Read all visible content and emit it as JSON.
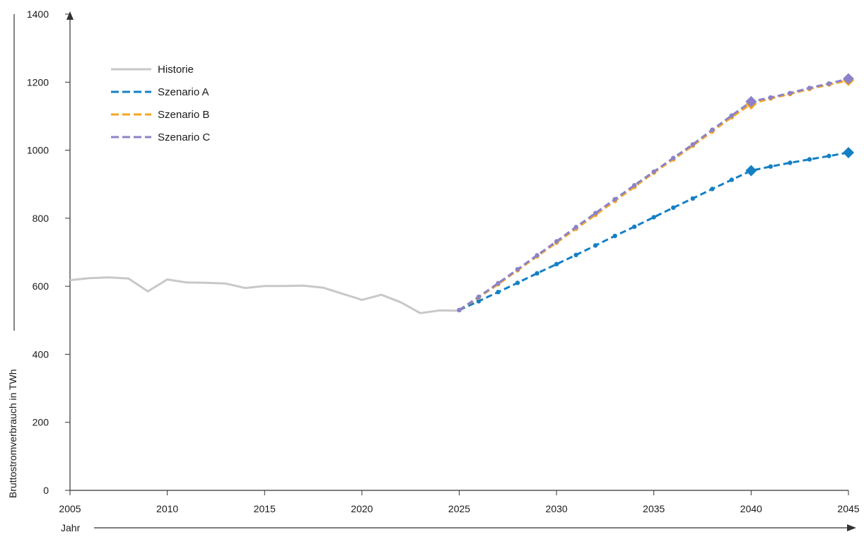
{
  "chart_data": {
    "type": "line",
    "xlabel": "Jahr",
    "ylabel": "Bruttostromverbrauch in TWh",
    "xlim": [
      2005,
      2045
    ],
    "ylim": [
      0,
      1400
    ],
    "x_ticks": [
      2005,
      2010,
      2015,
      2020,
      2025,
      2030,
      2035,
      2040,
      2045
    ],
    "y_ticks": [
      0,
      200,
      400,
      600,
      800,
      1000,
      1200,
      1400
    ],
    "grid": false,
    "legend": "top-left",
    "series": [
      {
        "name": "Historie",
        "color": "#c8c8c8",
        "style": "solid",
        "points": [
          [
            2005,
            618
          ],
          [
            2006,
            624
          ],
          [
            2007,
            626
          ],
          [
            2008,
            623
          ],
          [
            2009,
            585
          ],
          [
            2010,
            620
          ],
          [
            2011,
            611
          ],
          [
            2012,
            610
          ],
          [
            2013,
            608
          ],
          [
            2014,
            595
          ],
          [
            2015,
            601
          ],
          [
            2016,
            601
          ],
          [
            2017,
            602
          ],
          [
            2018,
            596
          ],
          [
            2019,
            578
          ],
          [
            2020,
            560
          ],
          [
            2021,
            575
          ],
          [
            2022,
            553
          ],
          [
            2023,
            521
          ],
          [
            2024,
            529
          ],
          [
            2025,
            528
          ]
        ]
      },
      {
        "name": "Szenario A",
        "color": "#1480c4",
        "style": "dashed",
        "points": [
          [
            2025,
            530
          ],
          [
            2026,
            556
          ],
          [
            2027,
            583
          ],
          [
            2028,
            610
          ],
          [
            2029,
            638
          ],
          [
            2030,
            665
          ],
          [
            2031,
            692
          ],
          [
            2032,
            720
          ],
          [
            2033,
            748
          ],
          [
            2034,
            775
          ],
          [
            2035,
            803
          ],
          [
            2036,
            831
          ],
          [
            2037,
            858
          ],
          [
            2038,
            886
          ],
          [
            2039,
            913
          ],
          [
            2040,
            940
          ],
          [
            2041,
            952
          ],
          [
            2042,
            963
          ],
          [
            2043,
            973
          ],
          [
            2044,
            983
          ],
          [
            2045,
            993
          ]
        ],
        "highlight_x": [
          2040,
          2045
        ]
      },
      {
        "name": "Szenario B",
        "color": "#f5a623",
        "style": "dashed",
        "points": [
          [
            2025,
            530
          ],
          [
            2026,
            567
          ],
          [
            2027,
            606
          ],
          [
            2028,
            647
          ],
          [
            2029,
            688
          ],
          [
            2030,
            728
          ],
          [
            2031,
            769
          ],
          [
            2032,
            810
          ],
          [
            2033,
            851
          ],
          [
            2034,
            892
          ],
          [
            2035,
            934
          ],
          [
            2036,
            973
          ],
          [
            2037,
            1013
          ],
          [
            2038,
            1055
          ],
          [
            2039,
            1097
          ],
          [
            2040,
            1136
          ],
          [
            2041,
            1152
          ],
          [
            2042,
            1165
          ],
          [
            2043,
            1180
          ],
          [
            2044,
            1193
          ],
          [
            2045,
            1205
          ]
        ],
        "highlight_x": [
          2040,
          2045
        ]
      },
      {
        "name": "Szenario C",
        "color": "#8c82c8",
        "style": "dashed",
        "points": [
          [
            2025,
            530
          ],
          [
            2026,
            569
          ],
          [
            2027,
            609
          ],
          [
            2028,
            650
          ],
          [
            2029,
            691
          ],
          [
            2030,
            732
          ],
          [
            2031,
            774
          ],
          [
            2032,
            815
          ],
          [
            2033,
            856
          ],
          [
            2034,
            897
          ],
          [
            2035,
            937
          ],
          [
            2036,
            977
          ],
          [
            2037,
            1017
          ],
          [
            2038,
            1060
          ],
          [
            2039,
            1102
          ],
          [
            2040,
            1143
          ],
          [
            2041,
            1155
          ],
          [
            2042,
            1168
          ],
          [
            2043,
            1183
          ],
          [
            2044,
            1196
          ],
          [
            2045,
            1210
          ]
        ],
        "highlight_x": [
          2040,
          2045
        ]
      }
    ]
  }
}
